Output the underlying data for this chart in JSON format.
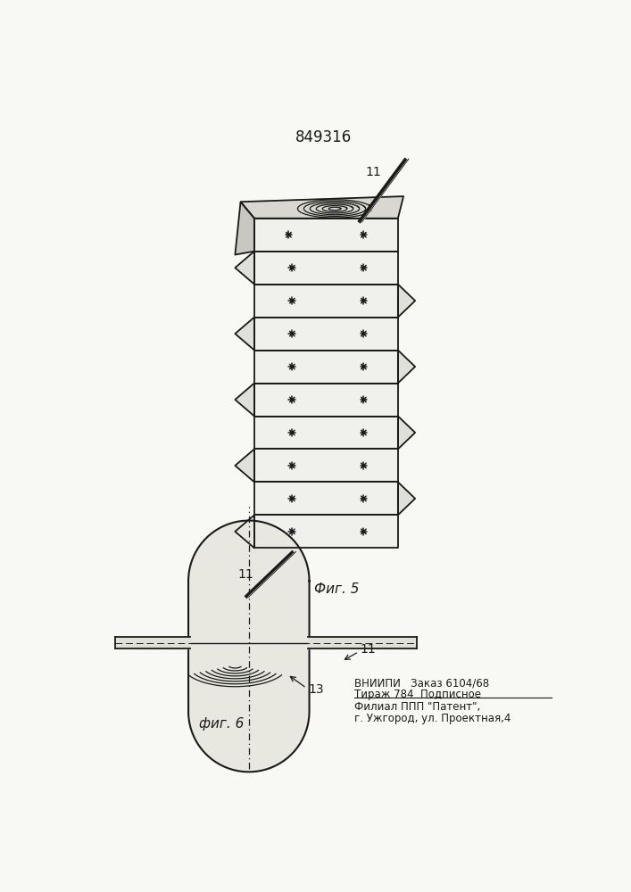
{
  "patent_number": "849316",
  "fig5_label": "Фиг. 5",
  "fig6_label": "фиг. 6",
  "lead_label": "11",
  "label_13": "13",
  "footnote_line1": "ВНИИПИ   Заказ 6104/68",
  "footnote_line2": "Тираж 784  Подписное",
  "footnote_line3": "Филиал ППП \"Патент\",",
  "footnote_line4": "г. Ужгород, ул. Проектная,4",
  "bg_color": "#f8f8f4",
  "line_color": "#1a1a1a"
}
